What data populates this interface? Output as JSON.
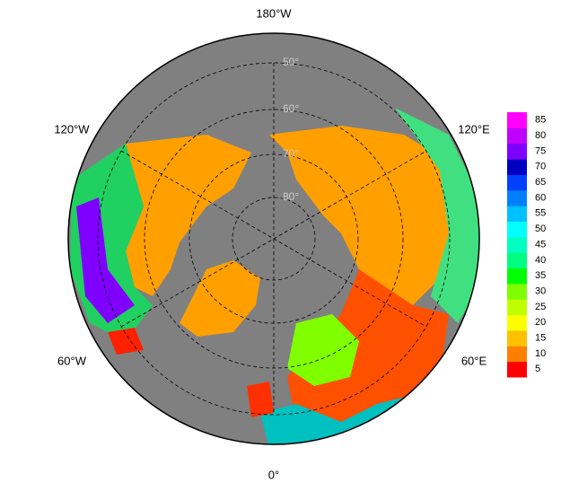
{
  "map": {
    "longitude_labels": {
      "top": "180°W",
      "upper_left": "120°W",
      "upper_right": "120°E",
      "lower_left": "60°W",
      "lower_right": "60°E",
      "bottom": "0°"
    },
    "latitude_labels": [
      "50°",
      "60°",
      "70°",
      "80°"
    ],
    "colorbar": {
      "ticks": [
        5,
        10,
        15,
        20,
        25,
        30,
        35,
        40,
        45,
        50,
        55,
        60,
        65,
        70,
        75,
        80,
        85
      ],
      "colors": [
        "#ff0000",
        "#ff8000",
        "#ffc000",
        "#ffff00",
        "#c0ff00",
        "#80ff00",
        "#00ff00",
        "#00ff80",
        "#00ffc0",
        "#00ffff",
        "#00c0ff",
        "#0080ff",
        "#0040ff",
        "#0000c0",
        "#8000ff",
        "#c000ff",
        "#ff00ff"
      ]
    }
  }
}
